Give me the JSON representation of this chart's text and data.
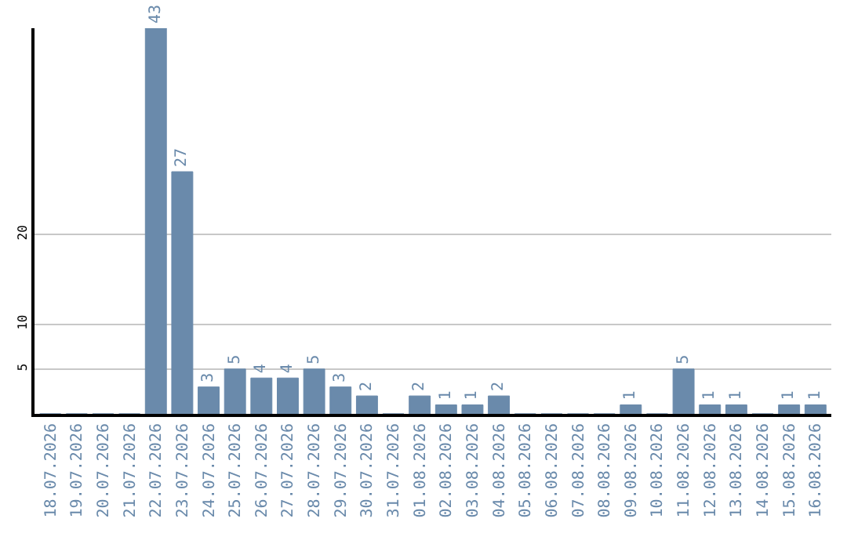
{
  "chart_data": {
    "type": "bar",
    "categories": [
      "18.07.2026",
      "19.07.2026",
      "20.07.2026",
      "21.07.2026",
      "22.07.2026",
      "23.07.2026",
      "24.07.2026",
      "25.07.2026",
      "26.07.2026",
      "27.07.2026",
      "28.07.2026",
      "29.07.2026",
      "30.07.2026",
      "31.07.2026",
      "01.08.2026",
      "02.08.2026",
      "03.08.2026",
      "04.08.2026",
      "05.08.2026",
      "06.08.2026",
      "07.08.2026",
      "08.08.2026",
      "09.08.2026",
      "10.08.2026",
      "11.08.2026",
      "12.08.2026",
      "13.08.2026",
      "14.08.2026",
      "15.08.2026",
      "16.08.2026"
    ],
    "values": [
      0,
      0,
      0,
      0,
      43,
      27,
      3,
      5,
      4,
      4,
      5,
      3,
      2,
      0,
      2,
      1,
      1,
      2,
      0,
      0,
      0,
      0,
      1,
      0,
      5,
      1,
      1,
      0,
      1,
      1
    ],
    "value_labels": [
      null,
      null,
      null,
      null,
      "43",
      "27",
      "3",
      "5",
      "4",
      "4",
      "5",
      "3",
      "2",
      null,
      "2",
      "1",
      "1",
      "2",
      null,
      null,
      null,
      null,
      "1",
      null,
      "5",
      "1",
      "1",
      null,
      "1",
      "1"
    ],
    "color": "#6a8aab",
    "ylim": [
      0,
      43
    ],
    "yticks": [
      5,
      10,
      20
    ],
    "grid": "y",
    "legend": false
  }
}
